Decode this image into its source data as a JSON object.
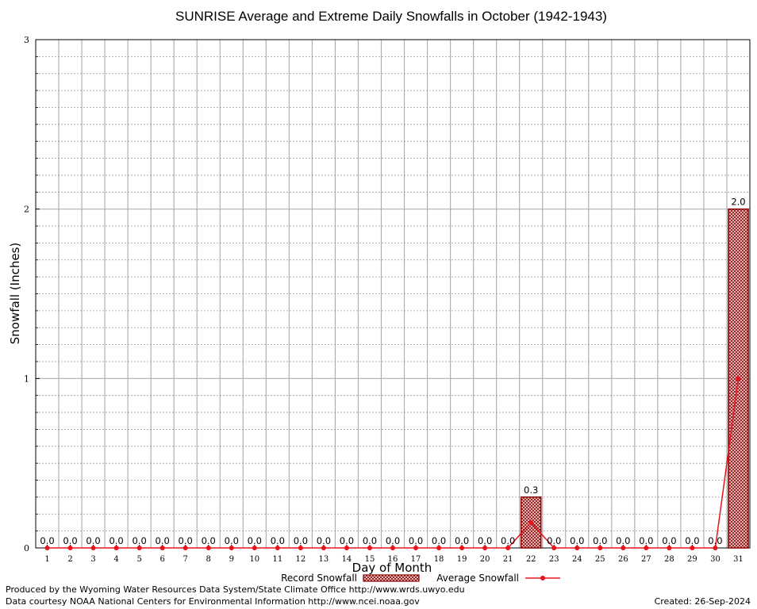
{
  "chart_data": {
    "type": "bar",
    "title": "SUNRISE Average and Extreme Daily Snowfalls in October (1942-1943)",
    "xlabel": "Day of Month",
    "ylabel": "Snowfall (Inches)",
    "ylim": [
      0,
      3
    ],
    "yticks": [
      "0",
      "1",
      "2",
      "3"
    ],
    "categories": [
      "1",
      "2",
      "3",
      "4",
      "5",
      "6",
      "7",
      "8",
      "9",
      "10",
      "11",
      "12",
      "13",
      "14",
      "15",
      "16",
      "17",
      "18",
      "19",
      "20",
      "21",
      "22",
      "23",
      "24",
      "25",
      "26",
      "27",
      "28",
      "29",
      "30",
      "31"
    ],
    "series": [
      {
        "name": "Record Snowfall",
        "type": "bar",
        "color": "#8b0000",
        "values": [
          0,
          0,
          0,
          0,
          0,
          0,
          0,
          0,
          0,
          0,
          0,
          0,
          0,
          0,
          0,
          0,
          0,
          0,
          0,
          0,
          0,
          0.3,
          0,
          0,
          0,
          0,
          0,
          0,
          0,
          0,
          2.0
        ],
        "labels": [
          "0.0",
          "0.0",
          "0.0",
          "0.0",
          "0.0",
          "0.0",
          "0.0",
          "0.0",
          "0.0",
          "0.0",
          "0.0",
          "0.0",
          "0.0",
          "0.0",
          "0.0",
          "0.0",
          "0.0",
          "0.0",
          "0.0",
          "0.0",
          "0.0",
          "0.3",
          "0.0",
          "0.0",
          "0.0",
          "0.0",
          "0.0",
          "0.0",
          "0.0",
          "0.0",
          "2.0"
        ]
      },
      {
        "name": "Average Snowfall",
        "type": "line",
        "color": "#e8141c",
        "values": [
          0,
          0,
          0,
          0,
          0,
          0,
          0,
          0,
          0,
          0,
          0,
          0,
          0,
          0,
          0,
          0,
          0,
          0,
          0,
          0,
          0,
          0.15,
          0,
          0,
          0,
          0,
          0,
          0,
          0,
          0,
          1.0
        ]
      }
    ],
    "grid": true,
    "legend": "bottom"
  },
  "footer": {
    "line1": "Produced by the Wyoming Water Resources Data System/State Climate Office http://www.wrds.uwyo.edu",
    "line2": "Data courtesy NOAA National Centers for Environmental Information http://www.ncei.noaa.gov",
    "created": "Created:  26-Sep-2024"
  }
}
